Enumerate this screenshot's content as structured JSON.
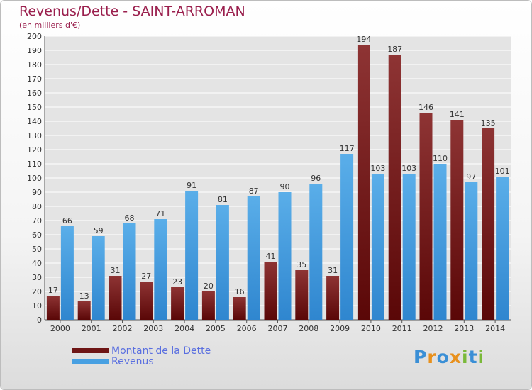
{
  "title": "Revenus/Dette - SAINT-ARROMAN",
  "subtitle": "(en milliers d'€)",
  "logo": {
    "letters": [
      "P",
      "r",
      "o",
      "x",
      "i",
      "t",
      "i"
    ],
    "colors": [
      "#3a8fd6",
      "#e8901c",
      "#3a8fd6",
      "#e8901c",
      "#7ab93a",
      "#3a8fd6",
      "#7ab93a"
    ]
  },
  "colors": {
    "dette_top": "#8e3434",
    "dette_bottom": "#5a0707",
    "revenus_top": "#5aaee9",
    "revenus_bottom": "#2f86cf",
    "axis_text": "#333333",
    "grid": "#ffffff"
  },
  "legend": {
    "items": [
      {
        "label": "Montant de la Dette",
        "color": "#6e1515"
      },
      {
        "label": "Revenus",
        "color": "#48a0e2"
      }
    ]
  },
  "chart_data": {
    "type": "bar",
    "categories": [
      "2000",
      "2001",
      "2002",
      "2003",
      "2004",
      "2005",
      "2006",
      "2007",
      "2008",
      "2009",
      "2010",
      "2011",
      "2012",
      "2013",
      "2014"
    ],
    "series": [
      {
        "name": "Montant de la Dette",
        "values": [
          17,
          13,
          31,
          27,
          23,
          20,
          16,
          41,
          35,
          31,
          194,
          187,
          146,
          141,
          135
        ]
      },
      {
        "name": "Revenus",
        "values": [
          66,
          59,
          68,
          71,
          91,
          81,
          87,
          90,
          96,
          117,
          103,
          103,
          110,
          97,
          101
        ]
      }
    ],
    "title": "Revenus/Dette - SAINT-ARROMAN",
    "subtitle": "(en milliers d'€)",
    "xlabel": "",
    "ylabel": "",
    "ylim": [
      0,
      200
    ],
    "ytick_step": 10,
    "grid": true,
    "legend_position": "bottom-left"
  }
}
